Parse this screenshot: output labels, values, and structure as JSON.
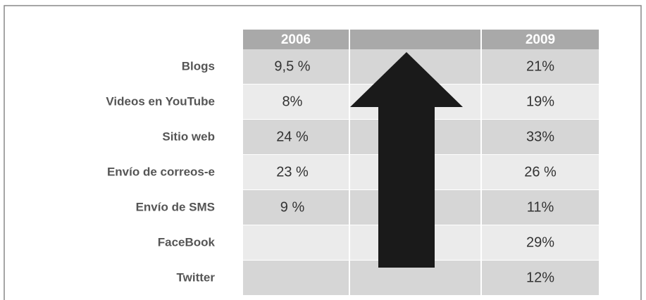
{
  "table": {
    "headers": [
      "2006",
      "2009"
    ],
    "rows": [
      {
        "label": "Blogs",
        "v2006": "9,5 %",
        "v2009": "21%"
      },
      {
        "label": "Videos en YouTube",
        "v2006": "8%",
        "v2009": "19%"
      },
      {
        "label": "Sitio web",
        "v2006": "24 %",
        "v2009": "33%"
      },
      {
        "label": "Envío de correos-e",
        "v2006": "23 %",
        "v2009": "26 %"
      },
      {
        "label": "Envío de SMS",
        "v2006": "9 %",
        "v2009": "11%"
      },
      {
        "label": "FaceBook",
        "v2009": "29%"
      },
      {
        "label": "Twitter",
        "v2009": "12%"
      }
    ]
  }
}
